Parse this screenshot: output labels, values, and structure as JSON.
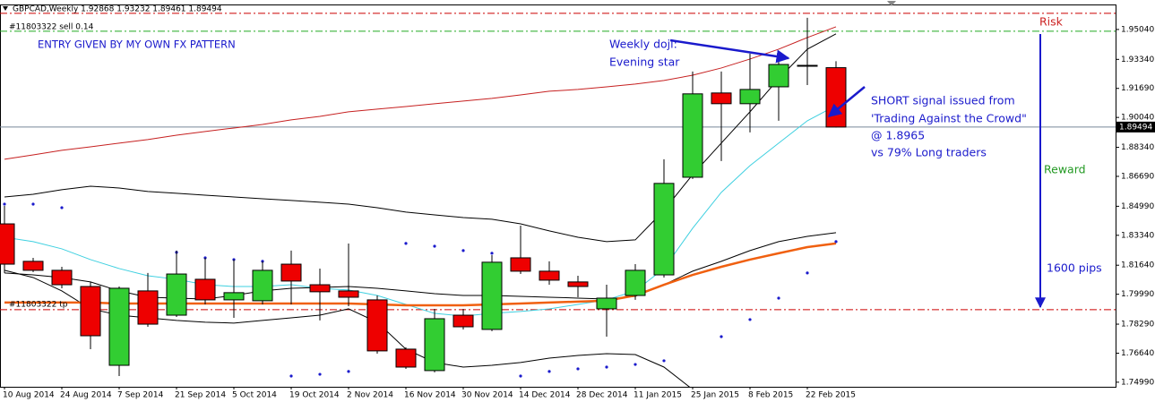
{
  "chart_data": {
    "type": "candlestick",
    "title": "GBPCAD,Weekly  1.92868 1.93232 1.89461 1.89494",
    "categories": [
      "10 Aug 2014",
      null,
      "24 Aug 2014",
      null,
      "7 Sep 2014",
      null,
      "21 Sep 2014",
      null,
      "5 Oct 2014",
      null,
      "19 Oct 2014",
      null,
      "2 Nov 2014",
      null,
      "16 Nov 2014",
      null,
      "30 Nov 2014",
      null,
      "14 Dec 2014",
      null,
      "28 Dec 2014",
      null,
      "11 Jan 2015",
      null,
      "25 Jan 2015",
      null,
      "8 Feb 2015",
      null,
      "22 Feb 2015",
      null
    ],
    "ohlc": [
      [
        1.8399,
        1.8501,
        1.812,
        1.817
      ],
      [
        1.8186,
        1.8206,
        1.8125,
        1.8135
      ],
      [
        1.8135,
        1.8155,
        1.8033,
        1.8053
      ],
      [
        1.8043,
        1.8069,
        1.7687,
        1.7763
      ],
      [
        1.7595,
        1.8043,
        1.7534,
        1.8033
      ],
      [
        1.8018,
        1.812,
        1.7814,
        1.7829
      ],
      [
        1.788,
        1.8247,
        1.787,
        1.8114
      ],
      [
        1.8084,
        1.8206,
        1.7941,
        1.7967
      ],
      [
        1.7967,
        1.8196,
        1.7865,
        1.8008
      ],
      [
        1.7962,
        1.8186,
        1.7941,
        1.8135
      ],
      [
        1.817,
        1.8247,
        1.7941,
        1.8074
      ],
      [
        1.8053,
        1.8145,
        1.785,
        1.8013
      ],
      [
        1.8018,
        1.8287,
        1.7931,
        1.7982
      ],
      [
        1.7967,
        1.7992,
        1.7661,
        1.7677
      ],
      [
        1.7687,
        1.7697,
        1.7575,
        1.7585
      ],
      [
        1.7565,
        1.7916,
        1.7555,
        1.786
      ],
      [
        1.788,
        1.7916,
        1.7799,
        1.7814
      ],
      [
        1.7799,
        1.8221,
        1.7789,
        1.8181
      ],
      [
        1.8206,
        1.8389,
        1.8114,
        1.813
      ],
      [
        1.813,
        1.8186,
        1.8053,
        1.8079
      ],
      [
        1.8069,
        1.8104,
        1.7982,
        1.8043
      ],
      [
        1.7916,
        1.8053,
        1.7758,
        1.7977
      ],
      [
        1.7992,
        1.817,
        1.7967,
        1.8135
      ],
      [
        1.8109,
        1.8766,
        1.8094,
        1.8629
      ],
      [
        1.8664,
        1.9265,
        1.8654,
        1.9138
      ],
      [
        1.9143,
        1.9265,
        1.8756,
        1.9082
      ],
      [
        1.9082,
        1.9367,
        1.8919,
        1.9163
      ],
      [
        1.9178,
        1.9377,
        1.8985,
        1.9305
      ],
      [
        1.93,
        1.957,
        1.9188,
        1.9295
      ],
      [
        1.92868,
        1.93232,
        1.89461,
        1.89494
      ]
    ],
    "up_color": "#32cd32",
    "down_color": "#ee0000",
    "overlays": [
      {
        "color": "#c62020",
        "values": [
          1.8766,
          1.8791,
          1.8817,
          1.8837,
          1.8858,
          1.8878,
          1.8903,
          1.8924,
          1.8944,
          1.8964,
          1.899,
          1.901,
          1.9036,
          1.9051,
          1.9066,
          1.9082,
          1.9097,
          1.9112,
          1.9132,
          1.9153,
          1.9163,
          1.9178,
          1.9194,
          1.9214,
          1.9244,
          1.9285,
          1.9336,
          1.9392,
          1.9458,
          1.9519
        ]
      },
      {
        "color": "#000000",
        "values": [
          1.8552,
          1.8567,
          1.8593,
          1.8613,
          1.8603,
          1.8583,
          1.8573,
          1.8562,
          1.8552,
          1.8542,
          1.8532,
          1.8522,
          1.8511,
          1.8491,
          1.8466,
          1.845,
          1.8435,
          1.8425,
          1.8399,
          1.8359,
          1.8323,
          1.8298,
          1.8308,
          1.8476,
          1.8679,
          1.8858,
          1.9036,
          1.9224,
          1.9392,
          1.9479
        ]
      },
      {
        "color": "#000000",
        "values": [
          1.812,
          1.8109,
          1.8094,
          1.8069,
          1.8018,
          1.7982,
          1.7977,
          1.7972,
          1.7992,
          1.8018,
          1.8033,
          1.8038,
          1.8043,
          1.8033,
          1.8018,
          1.8002,
          1.7992,
          1.7992,
          1.7987,
          1.7982,
          1.7977,
          1.7972,
          1.7987,
          1.8053,
          1.813,
          1.8186,
          1.8247,
          1.8298,
          1.8328,
          1.8349
        ]
      },
      {
        "color": "#000000",
        "values": [
          1.8135,
          1.8094,
          1.8018,
          1.7916,
          1.788,
          1.7865,
          1.785,
          1.784,
          1.7835,
          1.785,
          1.7865,
          1.788,
          1.7916,
          1.784,
          1.7687,
          1.7611,
          1.7585,
          1.7595,
          1.7611,
          1.7636,
          1.7651,
          1.7661,
          1.7656,
          1.7585,
          1.7458,
          null,
          null,
          null,
          null,
          null
        ]
      },
      {
        "color": "#3fd0e0",
        "values": [
          1.8323,
          1.8298,
          1.8257,
          1.8196,
          1.8145,
          1.8104,
          1.8084,
          1.8053,
          1.8043,
          1.8043,
          1.8053,
          1.8033,
          1.8023,
          1.7992,
          1.7941,
          1.789,
          1.7875,
          1.789,
          1.7901,
          1.7916,
          1.7941,
          1.7967,
          1.8018,
          1.8145,
          1.8374,
          1.8578,
          1.873,
          1.8858,
          1.8985,
          1.9071
        ]
      },
      {
        "color": "#f06010",
        "width": 2.5,
        "values": [
          1.7952,
          1.7952,
          1.7952,
          1.7952,
          1.7946,
          1.7946,
          1.7946,
          1.7946,
          1.7946,
          1.7946,
          1.7946,
          1.7946,
          1.7946,
          1.7941,
          1.7936,
          1.7936,
          1.7936,
          1.7941,
          1.7946,
          1.7952,
          1.7957,
          1.7962,
          1.7992,
          1.8053,
          1.8109,
          1.8155,
          1.8196,
          1.8232,
          1.8267,
          1.8288
        ]
      }
    ],
    "sar": {
      "color": "#1a1acc",
      "values": [
        1.8511,
        1.8511,
        1.8491,
        null,
        null,
        null,
        1.8237,
        1.8206,
        1.8196,
        1.8186,
        1.7534,
        1.7544,
        1.756,
        null,
        1.8288,
        1.8272,
        1.8247,
        1.8232,
        1.7534,
        1.756,
        1.7575,
        1.7585,
        1.76,
        1.7621,
        null,
        1.7758,
        1.7855,
        1.7977,
        1.812,
        1.8298
      ]
    },
    "hlines": [
      {
        "value": 1.9596,
        "color": "#cc0000"
      },
      {
        "value": 1.9494,
        "color": "#22aa22"
      },
      {
        "value": 1.7911,
        "color": "#cc0000"
      }
    ],
    "order_labels": [
      "#11803322 sell 0.14",
      "#11803322 tp"
    ],
    "current_price": 1.89494,
    "ylim": [
      1.7473,
      1.9646
    ],
    "yticks": [
      {
        "value": 1.9504,
        "label": "1.95040"
      },
      {
        "value": 1.9334,
        "label": "1.93340"
      },
      {
        "value": 1.9169,
        "label": "1.91690"
      },
      {
        "value": 1.9004,
        "label": "1.90040"
      },
      {
        "value": 1.8834,
        "label": "1.88340"
      },
      {
        "value": 1.8669,
        "label": "1.86690"
      },
      {
        "value": 1.8499,
        "label": "1.84990"
      },
      {
        "value": 1.8334,
        "label": "1.83340"
      },
      {
        "value": 1.8164,
        "label": "1.81640"
      },
      {
        "value": 1.7999,
        "label": "1.79990"
      },
      {
        "value": 1.7829,
        "label": "1.78290"
      },
      {
        "value": 1.7664,
        "label": "1.76640"
      },
      {
        "value": 1.7499,
        "label": "1.74990"
      }
    ],
    "annotations": [
      "ENTRY GIVEN BY MY OWN FX PATTERN",
      "Weekly doji:",
      "Evening star",
      "SHORT signal issued from",
      "'Trading Against the Crowd\"",
      "@ 1.8965",
      "vs 79% Long traders",
      "Risk",
      "Reward",
      "1600 pips"
    ]
  }
}
